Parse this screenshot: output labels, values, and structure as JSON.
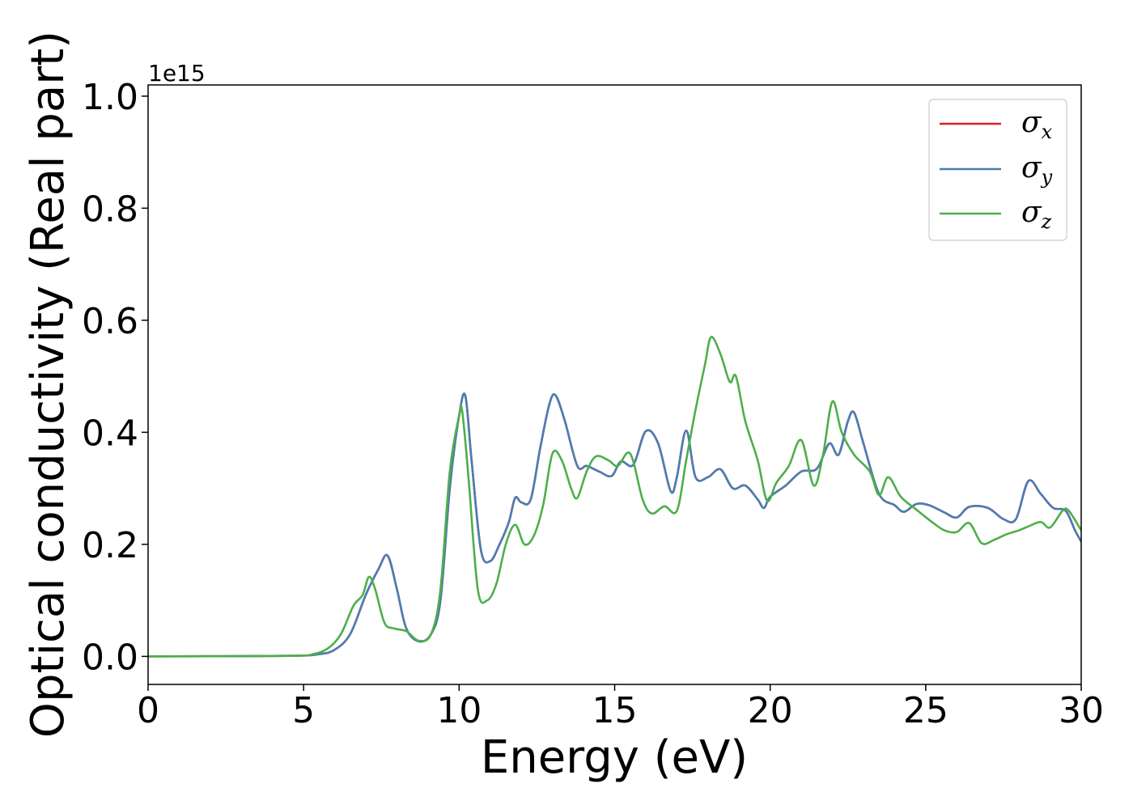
{
  "chart_data": {
    "type": "line",
    "xlabel": "Energy (eV)",
    "ylabel": "Optical conductivity (Real part)",
    "y_offset_label": "1e15",
    "xlim": [
      0,
      30
    ],
    "ylim": [
      -0.05,
      1.02
    ],
    "xticks": [
      0,
      5,
      10,
      15,
      20,
      25,
      30
    ],
    "xtick_labels": [
      "0",
      "5",
      "10",
      "15",
      "20",
      "25",
      "30"
    ],
    "yticks": [
      0.0,
      0.2,
      0.4,
      0.6,
      0.8,
      1.0
    ],
    "ytick_labels": [
      "0.0",
      "0.2",
      "0.4",
      "0.6",
      "0.8",
      "1.0"
    ],
    "grid": false,
    "legend_position": "top-right",
    "series": [
      {
        "name": "σ",
        "subscript": "x",
        "color": "#e41a1c",
        "points": [
          [
            0,
            0
          ],
          [
            4.5,
            0.001
          ],
          [
            5.5,
            0.004
          ],
          [
            6.0,
            0.012
          ],
          [
            6.5,
            0.04
          ],
          [
            7.0,
            0.11
          ],
          [
            7.4,
            0.155
          ],
          [
            7.7,
            0.18
          ],
          [
            8.0,
            0.12
          ],
          [
            8.3,
            0.05
          ],
          [
            8.7,
            0.027
          ],
          [
            9.1,
            0.04
          ],
          [
            9.4,
            0.1
          ],
          [
            9.7,
            0.3
          ],
          [
            10.0,
            0.43
          ],
          [
            10.2,
            0.465
          ],
          [
            10.4,
            0.35
          ],
          [
            10.7,
            0.19
          ],
          [
            11.0,
            0.17
          ],
          [
            11.3,
            0.2
          ],
          [
            11.6,
            0.24
          ],
          [
            11.8,
            0.283
          ],
          [
            12.0,
            0.275
          ],
          [
            12.3,
            0.28
          ],
          [
            12.6,
            0.37
          ],
          [
            12.9,
            0.45
          ],
          [
            13.1,
            0.466
          ],
          [
            13.4,
            0.42
          ],
          [
            13.8,
            0.34
          ],
          [
            14.1,
            0.34
          ],
          [
            14.5,
            0.33
          ],
          [
            14.9,
            0.322
          ],
          [
            15.2,
            0.348
          ],
          [
            15.6,
            0.342
          ],
          [
            16.0,
            0.402
          ],
          [
            16.4,
            0.38
          ],
          [
            16.8,
            0.295
          ],
          [
            17.0,
            0.32
          ],
          [
            17.3,
            0.403
          ],
          [
            17.6,
            0.32
          ],
          [
            18.0,
            0.32
          ],
          [
            18.4,
            0.334
          ],
          [
            18.8,
            0.3
          ],
          [
            19.2,
            0.305
          ],
          [
            19.6,
            0.28
          ],
          [
            19.8,
            0.265
          ],
          [
            20.0,
            0.285
          ],
          [
            20.5,
            0.305
          ],
          [
            21.0,
            0.33
          ],
          [
            21.5,
            0.335
          ],
          [
            21.9,
            0.38
          ],
          [
            22.2,
            0.36
          ],
          [
            22.5,
            0.42
          ],
          [
            22.7,
            0.435
          ],
          [
            23.0,
            0.38
          ],
          [
            23.5,
            0.29
          ],
          [
            24.0,
            0.27
          ],
          [
            24.3,
            0.258
          ],
          [
            24.7,
            0.272
          ],
          [
            25.1,
            0.27
          ],
          [
            25.6,
            0.257
          ],
          [
            26.0,
            0.248
          ],
          [
            26.4,
            0.267
          ],
          [
            27.0,
            0.265
          ],
          [
            27.5,
            0.245
          ],
          [
            27.9,
            0.245
          ],
          [
            28.3,
            0.313
          ],
          [
            28.7,
            0.29
          ],
          [
            29.1,
            0.265
          ],
          [
            29.5,
            0.26
          ],
          [
            29.8,
            0.225
          ],
          [
            30.0,
            0.205
          ]
        ]
      },
      {
        "name": "σ",
        "subscript": "y",
        "color": "#4a7eb3",
        "points": [
          [
            0,
            0
          ],
          [
            4.5,
            0.001
          ],
          [
            5.5,
            0.004
          ],
          [
            6.0,
            0.012
          ],
          [
            6.5,
            0.04
          ],
          [
            7.0,
            0.11
          ],
          [
            7.4,
            0.155
          ],
          [
            7.7,
            0.18
          ],
          [
            8.0,
            0.12
          ],
          [
            8.3,
            0.05
          ],
          [
            8.7,
            0.027
          ],
          [
            9.1,
            0.04
          ],
          [
            9.4,
            0.1
          ],
          [
            9.7,
            0.3
          ],
          [
            10.0,
            0.43
          ],
          [
            10.2,
            0.465
          ],
          [
            10.4,
            0.35
          ],
          [
            10.7,
            0.19
          ],
          [
            11.0,
            0.17
          ],
          [
            11.3,
            0.2
          ],
          [
            11.6,
            0.24
          ],
          [
            11.8,
            0.283
          ],
          [
            12.0,
            0.275
          ],
          [
            12.3,
            0.28
          ],
          [
            12.6,
            0.37
          ],
          [
            12.9,
            0.45
          ],
          [
            13.1,
            0.466
          ],
          [
            13.4,
            0.42
          ],
          [
            13.8,
            0.34
          ],
          [
            14.1,
            0.34
          ],
          [
            14.5,
            0.33
          ],
          [
            14.9,
            0.322
          ],
          [
            15.2,
            0.348
          ],
          [
            15.6,
            0.342
          ],
          [
            16.0,
            0.402
          ],
          [
            16.4,
            0.38
          ],
          [
            16.8,
            0.295
          ],
          [
            17.0,
            0.32
          ],
          [
            17.3,
            0.403
          ],
          [
            17.6,
            0.32
          ],
          [
            18.0,
            0.32
          ],
          [
            18.4,
            0.334
          ],
          [
            18.8,
            0.3
          ],
          [
            19.2,
            0.305
          ],
          [
            19.6,
            0.28
          ],
          [
            19.8,
            0.265
          ],
          [
            20.0,
            0.285
          ],
          [
            20.5,
            0.305
          ],
          [
            21.0,
            0.33
          ],
          [
            21.5,
            0.335
          ],
          [
            21.9,
            0.38
          ],
          [
            22.2,
            0.36
          ],
          [
            22.5,
            0.42
          ],
          [
            22.7,
            0.435
          ],
          [
            23.0,
            0.38
          ],
          [
            23.5,
            0.29
          ],
          [
            24.0,
            0.27
          ],
          [
            24.3,
            0.258
          ],
          [
            24.7,
            0.272
          ],
          [
            25.1,
            0.27
          ],
          [
            25.6,
            0.257
          ],
          [
            26.0,
            0.248
          ],
          [
            26.4,
            0.267
          ],
          [
            27.0,
            0.265
          ],
          [
            27.5,
            0.245
          ],
          [
            27.9,
            0.245
          ],
          [
            28.3,
            0.313
          ],
          [
            28.7,
            0.29
          ],
          [
            29.1,
            0.265
          ],
          [
            29.5,
            0.26
          ],
          [
            29.8,
            0.225
          ],
          [
            30.0,
            0.205
          ]
        ]
      },
      {
        "name": "σ",
        "subscript": "z",
        "color": "#4daf4a",
        "points": [
          [
            0,
            0
          ],
          [
            4.5,
            0.001
          ],
          [
            5.3,
            0.004
          ],
          [
            5.8,
            0.015
          ],
          [
            6.2,
            0.04
          ],
          [
            6.6,
            0.09
          ],
          [
            6.9,
            0.11
          ],
          [
            7.1,
            0.142
          ],
          [
            7.3,
            0.12
          ],
          [
            7.6,
            0.06
          ],
          [
            7.9,
            0.05
          ],
          [
            8.3,
            0.045
          ],
          [
            8.7,
            0.028
          ],
          [
            9.1,
            0.04
          ],
          [
            9.4,
            0.12
          ],
          [
            9.7,
            0.33
          ],
          [
            10.0,
            0.43
          ],
          [
            10.1,
            0.437
          ],
          [
            10.3,
            0.32
          ],
          [
            10.6,
            0.12
          ],
          [
            10.9,
            0.1
          ],
          [
            11.2,
            0.13
          ],
          [
            11.5,
            0.2
          ],
          [
            11.8,
            0.235
          ],
          [
            12.1,
            0.2
          ],
          [
            12.4,
            0.215
          ],
          [
            12.7,
            0.27
          ],
          [
            13.0,
            0.362
          ],
          [
            13.3,
            0.35
          ],
          [
            13.6,
            0.3
          ],
          [
            13.8,
            0.283
          ],
          [
            14.1,
            0.33
          ],
          [
            14.4,
            0.357
          ],
          [
            14.8,
            0.35
          ],
          [
            15.1,
            0.34
          ],
          [
            15.5,
            0.362
          ],
          [
            15.9,
            0.28
          ],
          [
            16.2,
            0.255
          ],
          [
            16.6,
            0.268
          ],
          [
            17.0,
            0.26
          ],
          [
            17.3,
            0.35
          ],
          [
            17.6,
            0.44
          ],
          [
            17.9,
            0.52
          ],
          [
            18.1,
            0.57
          ],
          [
            18.4,
            0.54
          ],
          [
            18.7,
            0.49
          ],
          [
            18.9,
            0.5
          ],
          [
            19.2,
            0.42
          ],
          [
            19.6,
            0.35
          ],
          [
            19.9,
            0.278
          ],
          [
            20.2,
            0.31
          ],
          [
            20.6,
            0.34
          ],
          [
            21.0,
            0.386
          ],
          [
            21.4,
            0.305
          ],
          [
            21.7,
            0.36
          ],
          [
            22.0,
            0.455
          ],
          [
            22.3,
            0.4
          ],
          [
            22.7,
            0.36
          ],
          [
            23.2,
            0.33
          ],
          [
            23.5,
            0.288
          ],
          [
            23.8,
            0.32
          ],
          [
            24.2,
            0.285
          ],
          [
            24.7,
            0.262
          ],
          [
            25.2,
            0.24
          ],
          [
            25.6,
            0.225
          ],
          [
            26.0,
            0.222
          ],
          [
            26.4,
            0.238
          ],
          [
            26.8,
            0.202
          ],
          [
            27.2,
            0.208
          ],
          [
            27.6,
            0.218
          ],
          [
            28.0,
            0.225
          ],
          [
            28.3,
            0.232
          ],
          [
            28.7,
            0.24
          ],
          [
            29.0,
            0.23
          ],
          [
            29.4,
            0.26
          ],
          [
            29.6,
            0.26
          ],
          [
            30.0,
            0.225
          ]
        ]
      }
    ]
  }
}
